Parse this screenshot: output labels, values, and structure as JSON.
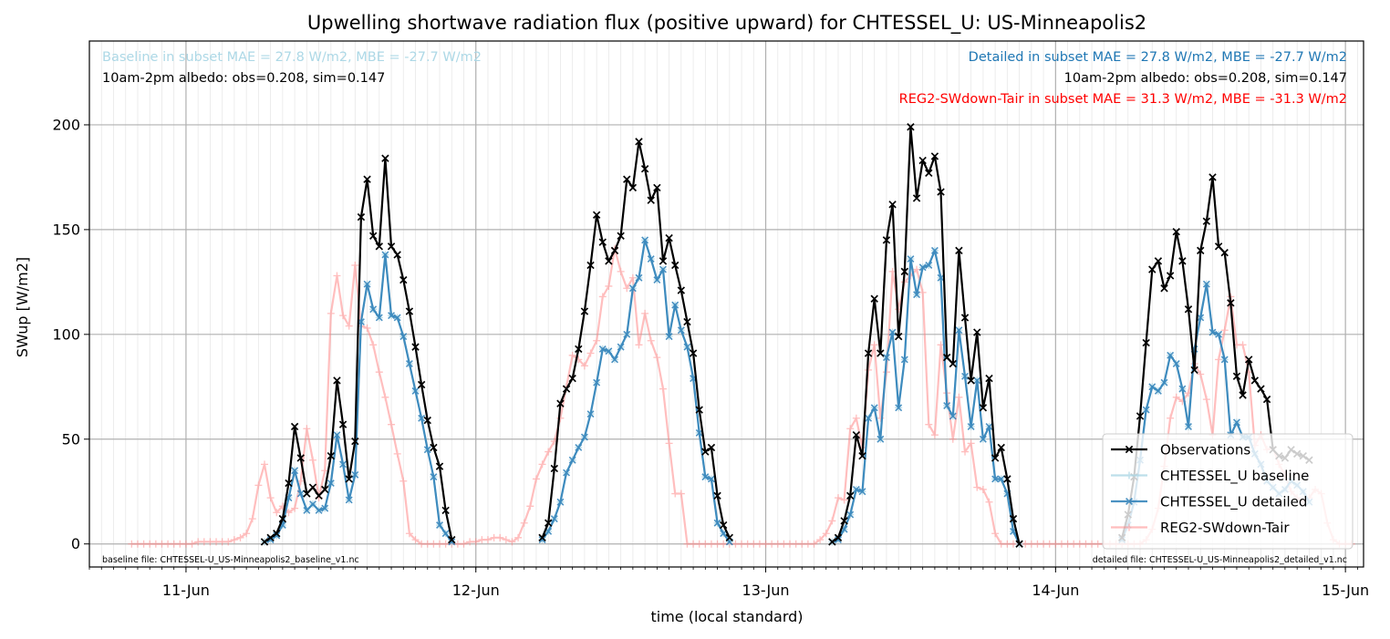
{
  "chart_data": {
    "type": "line",
    "title": "Upwelling shortwave radiation flux (positive upward) for CHTESSEL_U: US-Minneapolis2",
    "xlabel": "time (local standard)",
    "ylabel": "SWup [W/m2]",
    "xlim": [
      "2014-06-10T16:00",
      "2014-06-15T01:30"
    ],
    "ylim": [
      -11,
      240
    ],
    "yticks": [
      0,
      50,
      100,
      150,
      200
    ],
    "xticks": [
      {
        "t": "2014-06-11T00:00",
        "label": "11-Jun"
      },
      {
        "t": "2014-06-12T00:00",
        "label": "12-Jun"
      },
      {
        "t": "2014-06-13T00:00",
        "label": "13-Jun"
      },
      {
        "t": "2014-06-14T00:00",
        "label": "14-Jun"
      },
      {
        "t": "2014-06-15T00:00",
        "label": "15-Jun"
      }
    ],
    "grid": true,
    "legend_position": "lower-right",
    "annotations": {
      "baseline_stats": "Baseline in subset MAE = 27.8 W/m2, MBE = -27.7 W/m2",
      "albedo_left": "10am-2pm albedo: obs=0.208, sim=0.147",
      "detailed_stats": "Detailed in subset MAE = 27.8 W/m2, MBE = -27.7 W/m2",
      "albedo_right": "10am-2pm albedo: obs=0.208, sim=0.147",
      "reg2_stats": "REG2-SWdown-Tair in subset MAE = 31.3 W/m2, MBE = -31.3 W/m2",
      "baseline_file": "baseline file: CHTESSEL-U_US-Minneapolis2_baseline_v1.nc",
      "detailed_file": "detailed file: CHTESSEL-U_US-Minneapolis2_detailed_v1.nc"
    },
    "series": [
      {
        "name": "Observations",
        "color": "#000000",
        "marker": "x",
        "segments": [
          {
            "start": "2014-06-11T06:30",
            "values": [
              1,
              3,
              5,
              12,
              29,
              56,
              41,
              24,
              27,
              23,
              26,
              42,
              78,
              57,
              31,
              49,
              156,
              174,
              147,
              142,
              184,
              142,
              138,
              126,
              111,
              94,
              76,
              59,
              46,
              37,
              16,
              2
            ]
          },
          {
            "start": "2014-06-12T05:30",
            "values": [
              3,
              10,
              36,
              67,
              74,
              79,
              93,
              111,
              133,
              157,
              144,
              135,
              140,
              147,
              174,
              170,
              192,
              179,
              164,
              170,
              135,
              146,
              133,
              121,
              106,
              91,
              64,
              44,
              46,
              23,
              9,
              3
            ]
          },
          {
            "start": "2014-06-13T05:30",
            "values": [
              1,
              3,
              11,
              23,
              52,
              42,
              91,
              117,
              91,
              145,
              162,
              99,
              130,
              199,
              165,
              183,
              177,
              185,
              168,
              89,
              86,
              140,
              108,
              78,
              101,
              65,
              79,
              41,
              46,
              31,
              12,
              0
            ]
          },
          {
            "start": "2014-06-14T05:30",
            "values": [
              3,
              14,
              32,
              61,
              96,
              131,
              135,
              122,
              128,
              149,
              135,
              112,
              83,
              140,
              154,
              175,
              142,
              139,
              115,
              80,
              71,
              88,
              78,
              74,
              69,
              45,
              42,
              41,
              45,
              43,
              42,
              40
            ]
          }
        ]
      },
      {
        "name": "CHTESSEL_U baseline",
        "color": "#add8e6",
        "marker": "+",
        "segments": [
          {
            "start": "2014-06-11T06:30",
            "values": [
              1,
              2,
              4,
              9,
              22,
              35,
              24,
              16,
              19,
              16,
              17,
              29,
              52,
              38,
              21,
              33,
              106,
              124,
              112,
              108,
              138,
              109,
              108,
              99,
              86,
              73,
              60,
              45,
              32,
              9,
              5,
              1
            ]
          },
          {
            "start": "2014-06-12T05:30",
            "values": [
              2,
              6,
              12,
              20,
              34,
              40,
              46,
              51,
              62,
              77,
              93,
              92,
              88,
              94,
              100,
              122,
              127,
              145,
              136,
              126,
              131,
              99,
              114,
              102,
              94,
              79,
              53,
              32,
              31,
              10,
              5,
              1
            ]
          },
          {
            "start": "2014-06-13T05:30",
            "values": [
              1,
              2,
              7,
              14,
              26,
              25,
              60,
              65,
              50,
              89,
              101,
              65,
              88,
              136,
              119,
              132,
              133,
              140,
              127,
              66,
              61,
              102,
              80,
              56,
              78,
              50,
              56,
              31,
              31,
              24,
              6,
              0
            ]
          },
          {
            "start": "2014-06-14T05:30",
            "values": [
              2,
              9,
              20,
              40,
              64,
              75,
              73,
              77,
              90,
              86,
              74,
              56,
              93,
              108,
              124,
              101,
              100,
              88,
              52,
              58,
              51,
              51,
              43,
              38,
              30,
              27,
              24,
              26,
              30,
              28,
              25,
              20
            ]
          }
        ]
      },
      {
        "name": "CHTESSEL_U detailed",
        "color": "#1f77b4",
        "marker": "x",
        "segments": [
          {
            "start": "2014-06-11T06:30",
            "values": [
              1,
              2,
              4,
              9,
              22,
              35,
              24,
              16,
              19,
              16,
              17,
              29,
              52,
              38,
              21,
              33,
              106,
              124,
              112,
              108,
              138,
              109,
              108,
              99,
              86,
              73,
              60,
              45,
              32,
              9,
              5,
              1
            ]
          },
          {
            "start": "2014-06-12T05:30",
            "values": [
              2,
              6,
              12,
              20,
              34,
              40,
              46,
              51,
              62,
              77,
              93,
              92,
              88,
              94,
              100,
              122,
              127,
              145,
              136,
              126,
              131,
              99,
              114,
              102,
              94,
              79,
              53,
              32,
              31,
              10,
              5,
              1
            ]
          },
          {
            "start": "2014-06-13T05:30",
            "values": [
              1,
              2,
              7,
              14,
              26,
              25,
              60,
              65,
              50,
              89,
              101,
              65,
              88,
              136,
              119,
              132,
              133,
              140,
              127,
              66,
              61,
              102,
              80,
              56,
              78,
              50,
              56,
              31,
              31,
              24,
              6,
              0
            ]
          },
          {
            "start": "2014-06-14T05:30",
            "values": [
              2,
              9,
              20,
              40,
              64,
              75,
              73,
              77,
              90,
              86,
              74,
              56,
              93,
              108,
              124,
              101,
              100,
              88,
              52,
              58,
              51,
              51,
              43,
              38,
              30,
              27,
              24,
              26,
              30,
              28,
              25,
              20
            ]
          }
        ]
      },
      {
        "name": "REG2-SWdown-Tair",
        "color": "#ff7f7f",
        "marker": "+",
        "segments": [
          {
            "start": "2014-06-10T19:30",
            "values": [
              0,
              0,
              0,
              0,
              0,
              0,
              0,
              0,
              0,
              0,
              0,
              1,
              1,
              1,
              1,
              1,
              1,
              2,
              3,
              5,
              12,
              28,
              38,
              22,
              15,
              18,
              15,
              17,
              30,
              55,
              40,
              22,
              35,
              110,
              128,
              109,
              104,
              133,
              104,
              103,
              95,
              82,
              70,
              57,
              43,
              30,
              5,
              2,
              0,
              0,
              0,
              0,
              0,
              0,
              0,
              0,
              1,
              1,
              2,
              2,
              3,
              3,
              2,
              1,
              3,
              10,
              18,
              31,
              38,
              44,
              49,
              60,
              75,
              90,
              88,
              85,
              91,
              97,
              118,
              123,
              141,
              130,
              122,
              127,
              95,
              110,
              97,
              89,
              74,
              48,
              24,
              24,
              0,
              0,
              0,
              0,
              0,
              0,
              0,
              0,
              0,
              0,
              0,
              0,
              0,
              0,
              0,
              0,
              0,
              0,
              0,
              0,
              0,
              0,
              2,
              5,
              11,
              22,
              21,
              55,
              60,
              46,
              83,
              95,
              60,
              82,
              130,
              112,
              125,
              128,
              131,
              120,
              57,
              52,
              95,
              72,
              50,
              70,
              44,
              48,
              27,
              26,
              20,
              5,
              0,
              0,
              0,
              0,
              0,
              0,
              0,
              0,
              0,
              0,
              0,
              0,
              0,
              0,
              0,
              0,
              0,
              0,
              0,
              0,
              0,
              0,
              0,
              0,
              2,
              7,
              17,
              37,
              60,
              70,
              68,
              72,
              86,
              81,
              69,
              52,
              88,
              102,
              118,
              95,
              95,
              82,
              47,
              52,
              45,
              46,
              38,
              33,
              25,
              22,
              20,
              22,
              26,
              24,
              10,
              2,
              0,
              0,
              0
            ]
          }
        ]
      }
    ]
  }
}
